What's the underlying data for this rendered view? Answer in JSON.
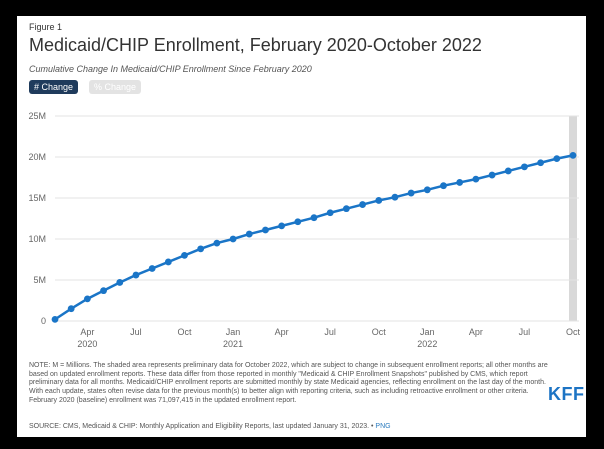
{
  "figure_label": "Figure 1",
  "title": "Medicaid/CHIP Enrollment, February 2020-October 2022",
  "subtitle": "Cumulative Change In Medicaid/CHIP Enrollment Since February 2020",
  "toggles": {
    "change_label": "# Change",
    "percent_label": "% Change"
  },
  "colors": {
    "series": "#1a75c7",
    "shaded": "#d9d9d9",
    "toggle_active": "#1f3b5c",
    "logo": "#1d74c4"
  },
  "note": "NOTE: M = Millions. The shaded area represents preliminary data for October 2022, which are subject to change in subsequent enrollment reports; all other months are based on updated enrollment reports. These data differ from those reported in monthly \"Medicaid & CHIP Enrollment Snapshots\" published by CMS, which report preliminary data for all months. Medicaid/CHIP enrollment reports are submitted monthly by state Medicaid agencies, reflecting enrollment on the last day of the month. With each update, states often revise data for the previous month(s) to better align with reporting criteria, such as including retroactive enrollment or other criteria. February 2020 (baseline) enrollment was 71,097,415 in the updated enrollment report.",
  "source": "SOURCE: CMS, Medicaid & CHIP: Monthly Application and Eligibility Reports, last updated January 31, 2023. •",
  "source_link": "PNG",
  "logo": "KFF",
  "chart_data": {
    "type": "line",
    "y_tick_labels": [
      "0",
      "5M",
      "10M",
      "15M",
      "20M",
      "25M"
    ],
    "ylim": [
      0,
      25
    ],
    "x_tick_labels": [
      {
        "month": "Apr",
        "year": "2020",
        "index": 2
      },
      {
        "month": "Jul",
        "year": "",
        "index": 5
      },
      {
        "month": "Oct",
        "year": "",
        "index": 8
      },
      {
        "month": "Jan",
        "year": "2021",
        "index": 11
      },
      {
        "month": "Apr",
        "year": "",
        "index": 14
      },
      {
        "month": "Jul",
        "year": "",
        "index": 17
      },
      {
        "month": "Oct",
        "year": "",
        "index": 20
      },
      {
        "month": "Jan",
        "year": "2022",
        "index": 23
      },
      {
        "month": "Apr",
        "year": "",
        "index": 26
      },
      {
        "month": "Jul",
        "year": "",
        "index": 29
      },
      {
        "month": "Oct",
        "year": "",
        "index": 32
      }
    ],
    "x": [
      "Feb 2020",
      "Mar 2020",
      "Apr 2020",
      "May 2020",
      "Jun 2020",
      "Jul 2020",
      "Aug 2020",
      "Sep 2020",
      "Oct 2020",
      "Nov 2020",
      "Dec 2020",
      "Jan 2021",
      "Feb 2021",
      "Mar 2021",
      "Apr 2021",
      "May 2021",
      "Jun 2021",
      "Jul 2021",
      "Aug 2021",
      "Sep 2021",
      "Oct 2021",
      "Nov 2021",
      "Dec 2021",
      "Jan 2022",
      "Feb 2022",
      "Mar 2022",
      "Apr 2022",
      "May 2022",
      "Jun 2022",
      "Jul 2022",
      "Aug 2022",
      "Sep 2022",
      "Oct 2022"
    ],
    "values": [
      0.2,
      1.5,
      2.7,
      3.7,
      4.7,
      5.6,
      6.4,
      7.2,
      8.0,
      8.8,
      9.5,
      10.0,
      10.6,
      11.1,
      11.6,
      12.1,
      12.6,
      13.2,
      13.7,
      14.2,
      14.7,
      15.1,
      15.6,
      16.0,
      16.5,
      16.9,
      17.3,
      17.8,
      18.3,
      18.8,
      19.3,
      19.8,
      20.2
    ],
    "shaded_index": 32,
    "grid": true
  }
}
